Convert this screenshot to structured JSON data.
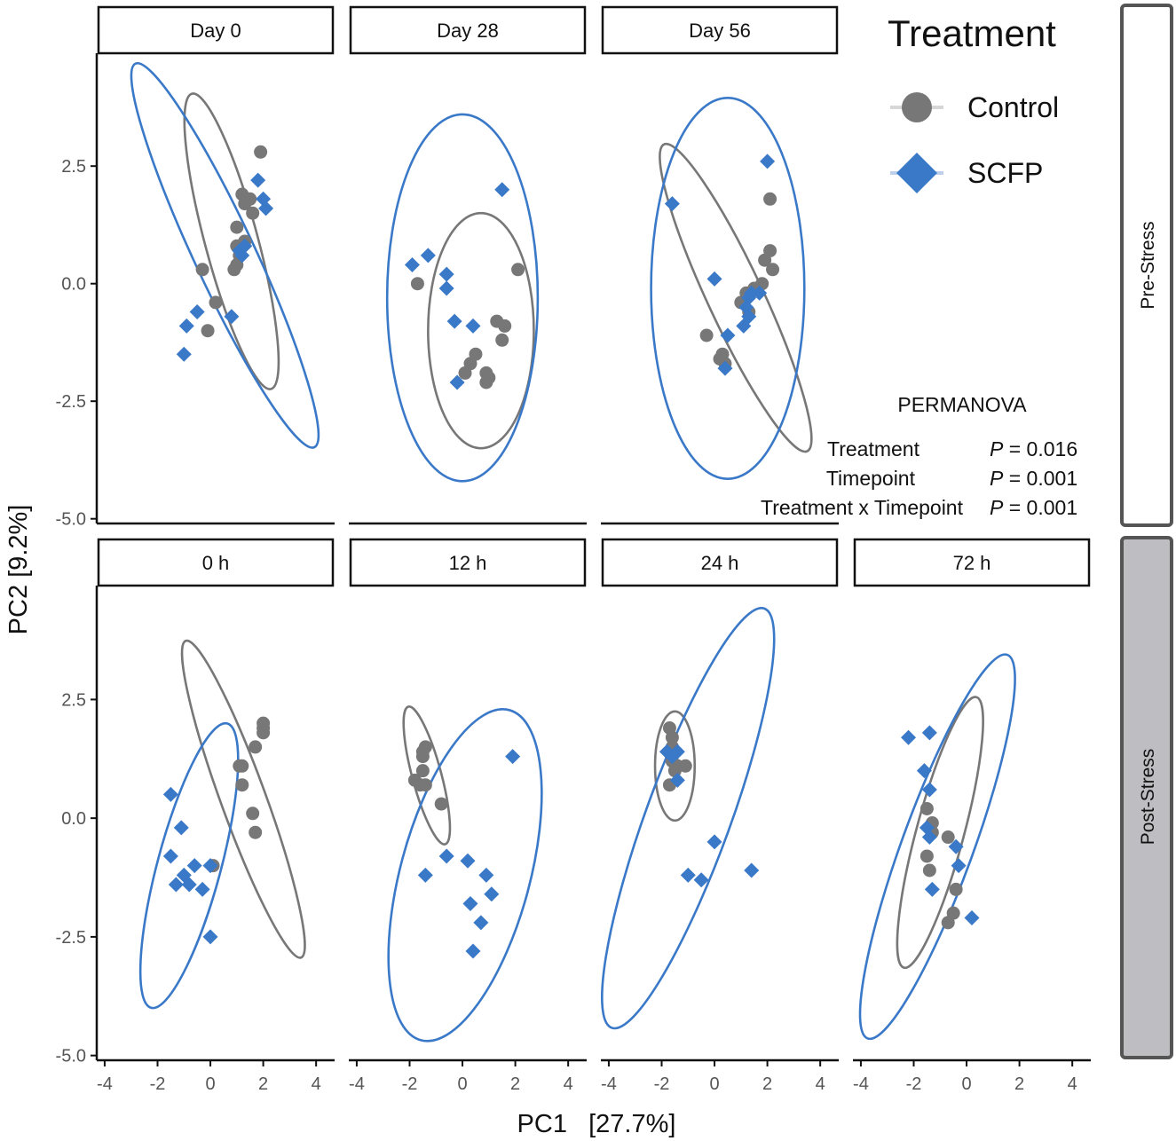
{
  "chart_data": {
    "type": "scatter",
    "xlabel": "PC1   [27.7%]",
    "ylabel": "PC2   [9.2%]",
    "xlim": [
      -4.3,
      4.7
    ],
    "ylim": [
      -5.1,
      4.9
    ],
    "xticks": [
      -4,
      -2,
      0,
      2,
      4
    ],
    "yticks": [
      2.5,
      0.0,
      -2.5,
      -5.0
    ],
    "ytick_labels": [
      "2.5",
      "0.0",
      "-2.5",
      "-5.0"
    ],
    "grid": false,
    "colors": {
      "Control": "#777777",
      "SCFP": "#3a78c8"
    },
    "legend": {
      "title": "Treatment",
      "entries": [
        {
          "name": "Control",
          "shape": "circle",
          "color": "#777777"
        },
        {
          "name": "SCFP",
          "shape": "diamond",
          "color": "#3a78c8"
        }
      ]
    },
    "rows": [
      {
        "label": "Pre-Stress",
        "facets": [
          "Day 0",
          "Day 28",
          "Day 56"
        ]
      },
      {
        "label": "Post-Stress",
        "facets": [
          "0 h",
          "12 h",
          "24 h",
          "72 h"
        ]
      }
    ],
    "stats": {
      "title": "PERMANOVA",
      "rows": [
        {
          "term": "Treatment",
          "p_label": "P",
          "p_value": "= 0.016"
        },
        {
          "term": "Timepoint",
          "p_label": "P",
          "p_value": "= 0.001"
        },
        {
          "term": "Treatment x Timepoint",
          "p_label": "P",
          "p_value": "= 0.001"
        }
      ]
    },
    "panels": [
      {
        "title": "Day 0",
        "row": "Pre-Stress",
        "Control": [
          [
            -0.3,
            0.3
          ],
          [
            0.2,
            -0.4
          ],
          [
            -0.1,
            -1.0
          ],
          [
            1.0,
            0.8
          ],
          [
            1.2,
            1.9
          ],
          [
            1.3,
            1.7
          ],
          [
            1.9,
            2.8
          ],
          [
            1.6,
            1.5
          ],
          [
            1.0,
            1.2
          ],
          [
            1.3,
            0.9
          ],
          [
            0.9,
            0.3
          ],
          [
            1.1,
            0.6
          ],
          [
            1.5,
            1.8
          ],
          [
            1.0,
            0.4
          ]
        ],
        "SCFP": [
          [
            -0.9,
            -0.9
          ],
          [
            -0.5,
            -0.6
          ],
          [
            -1.0,
            -1.5
          ],
          [
            0.8,
            -0.7
          ],
          [
            1.3,
            0.8
          ],
          [
            1.2,
            0.6
          ],
          [
            1.8,
            2.2
          ],
          [
            2.0,
            1.8
          ],
          [
            2.1,
            1.6
          ],
          [
            1.1,
            0.7
          ]
        ],
        "ellipses": [
          {
            "group": "Control",
            "cx": 0.8,
            "cy": 0.9,
            "rx": 1.0,
            "ry": 3.25,
            "angle": 15
          },
          {
            "group": "SCFP",
            "cx": 0.55,
            "cy": 0.6,
            "rx": 1.15,
            "ry": 4.5,
            "angle": 25
          }
        ]
      },
      {
        "title": "Day 28",
        "row": "Pre-Stress",
        "Control": [
          [
            -1.7,
            0.0
          ],
          [
            0.3,
            -1.7
          ],
          [
            0.5,
            -1.5
          ],
          [
            0.9,
            -1.9
          ],
          [
            0.9,
            -2.1
          ],
          [
            1.0,
            -2.0
          ],
          [
            1.5,
            -1.2
          ],
          [
            1.6,
            -0.9
          ],
          [
            1.3,
            -0.8
          ],
          [
            2.1,
            0.3
          ],
          [
            0.1,
            -1.9
          ]
        ],
        "SCFP": [
          [
            -1.9,
            0.4
          ],
          [
            -1.3,
            0.6
          ],
          [
            -0.6,
            0.2
          ],
          [
            -0.6,
            -0.1
          ],
          [
            -0.3,
            -0.8
          ],
          [
            0.4,
            -0.9
          ],
          [
            -0.2,
            -2.1
          ],
          [
            1.5,
            2.0
          ]
        ],
        "ellipses": [
          {
            "group": "Control",
            "cx": 0.7,
            "cy": -1.0,
            "rx": 2.0,
            "ry": 2.5,
            "angle": 0
          },
          {
            "group": "SCFP",
            "cx": 0.0,
            "cy": -0.3,
            "rx": 2.85,
            "ry": 3.9,
            "angle": 0
          }
        ]
      },
      {
        "title": "Day 56",
        "row": "Pre-Stress",
        "Control": [
          [
            -0.3,
            -1.1
          ],
          [
            0.2,
            -1.6
          ],
          [
            0.3,
            -1.5
          ],
          [
            1.0,
            -0.4
          ],
          [
            1.3,
            -0.6
          ],
          [
            1.2,
            -0.2
          ],
          [
            1.8,
            0.0
          ],
          [
            1.9,
            0.5
          ],
          [
            2.2,
            0.3
          ],
          [
            2.1,
            0.7
          ],
          [
            2.1,
            1.8
          ],
          [
            0.4,
            -1.7
          ],
          [
            1.5,
            -0.1
          ]
        ],
        "SCFP": [
          [
            -1.6,
            1.7
          ],
          [
            0.0,
            0.1
          ],
          [
            0.5,
            -1.1
          ],
          [
            0.4,
            -1.8
          ],
          [
            1.1,
            -0.9
          ],
          [
            1.3,
            -0.7
          ],
          [
            1.2,
            -0.5
          ],
          [
            1.4,
            -0.2
          ],
          [
            1.7,
            -0.2
          ],
          [
            2.0,
            2.6
          ],
          [
            1.3,
            -0.3
          ]
        ],
        "ellipses": [
          {
            "group": "Control",
            "cx": 0.8,
            "cy": -0.3,
            "rx": 1.05,
            "ry": 3.6,
            "angle": 25
          },
          {
            "group": "SCFP",
            "cx": 0.5,
            "cy": -0.1,
            "rx": 2.9,
            "ry": 4.05,
            "angle": 0
          }
        ]
      },
      {
        "title": "0 h",
        "row": "Post-Stress",
        "Control": [
          [
            0.1,
            -1.0
          ],
          [
            1.1,
            1.1
          ],
          [
            1.2,
            1.1
          ],
          [
            1.2,
            0.7
          ],
          [
            1.6,
            0.1
          ],
          [
            1.7,
            -0.3
          ],
          [
            1.7,
            1.5
          ],
          [
            2.0,
            1.9
          ],
          [
            2.0,
            1.8
          ],
          [
            2.0,
            2.0
          ]
        ],
        "SCFP": [
          [
            -1.5,
            0.5
          ],
          [
            -1.1,
            -0.2
          ],
          [
            -1.5,
            -0.8
          ],
          [
            -1.3,
            -1.4
          ],
          [
            -1.0,
            -1.2
          ],
          [
            -0.8,
            -1.4
          ],
          [
            -0.6,
            -1.0
          ],
          [
            -0.3,
            -1.5
          ],
          [
            0.0,
            -1.0
          ],
          [
            0.0,
            -2.5
          ]
        ],
        "ellipses": [
          {
            "group": "Control",
            "cx": 1.25,
            "cy": 0.4,
            "rx": 0.85,
            "ry": 3.55,
            "angle": 20
          },
          {
            "group": "SCFP",
            "cx": -0.8,
            "cy": -1.0,
            "rx": 1.2,
            "ry": 3.1,
            "angle": -15
          }
        ]
      },
      {
        "title": "12 h",
        "row": "Post-Stress",
        "Control": [
          [
            -1.8,
            0.8
          ],
          [
            -1.6,
            0.7
          ],
          [
            -1.4,
            0.7
          ],
          [
            -1.5,
            1.0
          ],
          [
            -1.5,
            1.3
          ],
          [
            -1.4,
            1.5
          ],
          [
            -1.5,
            1.4
          ],
          [
            -0.8,
            0.3
          ]
        ],
        "SCFP": [
          [
            -1.4,
            -1.2
          ],
          [
            -0.6,
            -0.8
          ],
          [
            0.2,
            -0.9
          ],
          [
            0.9,
            -1.2
          ],
          [
            1.1,
            -1.6
          ],
          [
            0.3,
            -1.8
          ],
          [
            0.7,
            -2.2
          ],
          [
            0.4,
            -2.8
          ],
          [
            1.9,
            1.3
          ]
        ],
        "ellipses": [
          {
            "group": "Control",
            "cx": -1.35,
            "cy": 0.9,
            "rx": 0.55,
            "ry": 1.5,
            "angle": 15
          },
          {
            "group": "SCFP",
            "cx": 0.1,
            "cy": -1.2,
            "rx": 2.45,
            "ry": 3.6,
            "angle": -15
          }
        ]
      },
      {
        "title": "24 h",
        "row": "Post-Stress",
        "Control": [
          [
            -1.7,
            1.9
          ],
          [
            -1.6,
            1.7
          ],
          [
            -1.6,
            1.5
          ],
          [
            -1.6,
            1.2
          ],
          [
            -1.5,
            1.0
          ],
          [
            -1.4,
            1.1
          ],
          [
            -1.7,
            0.7
          ],
          [
            -1.1,
            1.1
          ]
        ],
        "SCFP": [
          [
            -1.8,
            1.4
          ],
          [
            -1.6,
            1.3
          ],
          [
            -1.4,
            1.4
          ],
          [
            -1.4,
            0.8
          ],
          [
            -1.0,
            -1.2
          ],
          [
            -0.5,
            -1.3
          ],
          [
            0.0,
            -0.5
          ],
          [
            1.4,
            -1.1
          ]
        ],
        "ellipses": [
          {
            "group": "Control",
            "cx": -1.5,
            "cy": 1.1,
            "rx": 0.75,
            "ry": 1.15,
            "angle": 0
          },
          {
            "group": "SCFP",
            "cx": -1.0,
            "cy": 0.0,
            "rx": 1.6,
            "ry": 4.7,
            "angle": -20
          }
        ]
      },
      {
        "title": "72 h",
        "row": "Post-Stress",
        "Control": [
          [
            -1.5,
            0.2
          ],
          [
            -1.3,
            -0.1
          ],
          [
            -1.3,
            -0.3
          ],
          [
            -1.4,
            -1.1
          ],
          [
            -0.7,
            -0.4
          ],
          [
            -0.4,
            -1.5
          ],
          [
            -0.5,
            -2.0
          ],
          [
            -0.7,
            -2.2
          ],
          [
            -1.5,
            -0.8
          ]
        ],
        "SCFP": [
          [
            -2.2,
            1.7
          ],
          [
            -1.6,
            1.0
          ],
          [
            -1.4,
            1.8
          ],
          [
            -1.4,
            0.6
          ],
          [
            -1.5,
            -0.2
          ],
          [
            -1.4,
            -0.4
          ],
          [
            -0.4,
            -0.6
          ],
          [
            -0.3,
            -1.0
          ],
          [
            -1.3,
            -1.5
          ],
          [
            0.2,
            -2.1
          ]
        ],
        "ellipses": [
          {
            "group": "Control",
            "cx": -1.0,
            "cy": -0.3,
            "rx": 0.9,
            "ry": 2.95,
            "angle": -15
          },
          {
            "group": "SCFP",
            "cx": -1.1,
            "cy": -0.6,
            "rx": 1.35,
            "ry": 4.3,
            "angle": -20
          }
        ]
      }
    ]
  }
}
